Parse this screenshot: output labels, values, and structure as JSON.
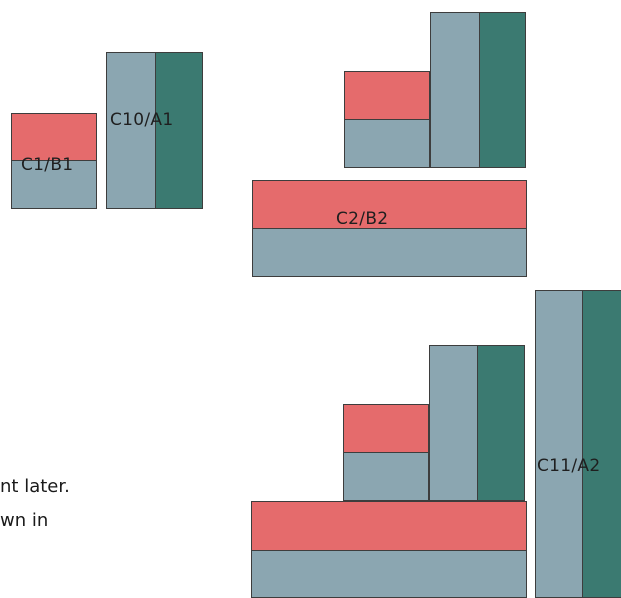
{
  "labels": {
    "c1_b1": "C1/B1",
    "c10_a1": "C10/A1",
    "c2_b2": "C2/B2",
    "c11_a2": "C11/A2"
  },
  "text_fragments": {
    "line1": "nt later.",
    "line2": "wn in"
  },
  "colors": {
    "red": "#e56b6c",
    "gray": "#8ba6b1",
    "teal": "#3b7a71",
    "border": "#3d3d3d"
  }
}
